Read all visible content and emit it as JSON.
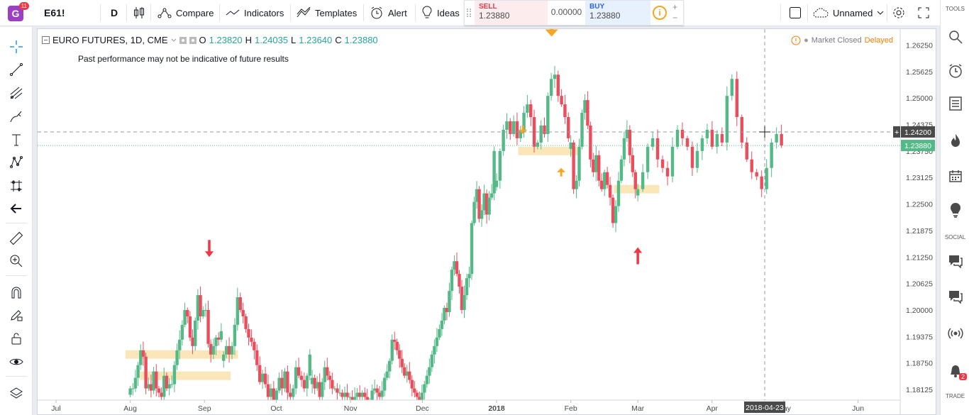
{
  "toolbar": {
    "symbol": "E61!",
    "logo_letter": "G",
    "notif_count": "11",
    "interval": "D",
    "compare": "Compare",
    "indicators": "Indicators",
    "templates": "Templates",
    "alert": "Alert",
    "ideas": "Ideas",
    "layout_name": "Unnamed"
  },
  "trade_panel": {
    "sell_label": "SELL",
    "sell_price": "1.23880",
    "spread": "0.00000",
    "buy_label": "BUY",
    "buy_price": "1.23880"
  },
  "legend": {
    "title": "EURO FUTURES, 1D, CME",
    "o_label": "O",
    "o": "1.23820",
    "h_label": "H",
    "h": "1.24035",
    "l_label": "L",
    "l": "1.23640",
    "c_label": "C",
    "c": "1.23880"
  },
  "disclaimer": "Past performance may not be indicative of future results",
  "market_status": {
    "text": "Market Closed",
    "delayed": "Delayed"
  },
  "right_panel": {
    "tools_label": "TOOLS",
    "social_label": "SOCIAL",
    "trade_label": "TRADE",
    "notif_badge": "2"
  },
  "chart_data": {
    "type": "candlestick",
    "title": "EURO FUTURES, 1D, CME",
    "ylim": [
      1.17875,
      1.26625
    ],
    "y_ticks": [
      "1.26250",
      "1.25625",
      "1.25000",
      "1.24375",
      "1.23750",
      "1.23125",
      "1.22500",
      "1.21875",
      "1.21250",
      "1.20625",
      "1.20000",
      "1.19375",
      "1.18750",
      "1.18125"
    ],
    "x_ticks": [
      "Jul",
      "Aug",
      "Sep",
      "Oct",
      "Nov",
      "Dec",
      "2018",
      "Feb",
      "Mar",
      "Apr",
      "May",
      "Jun"
    ],
    "last_price": "1.23880",
    "crosshair_price": "1.24200",
    "crosshair_date": "2018-04-23",
    "price_segments": [
      {
        "from_date": "2017-08-01",
        "to_date": "2017-09-08",
        "prices": [
          1.1815,
          1.1815,
          1.184,
          1.187,
          1.1905,
          1.189,
          1.1815,
          1.1825,
          1.181,
          1.1855,
          1.1815,
          1.1805,
          1.1795,
          1.1845,
          1.1815,
          1.1825,
          1.1825,
          1.187,
          1.1905,
          1.193,
          1.1965,
          1.2,
          1.1985,
          1.1935,
          1.1915,
          1.1975,
          1.2035,
          1.1985,
          1.2,
          1.2,
          1.192,
          1.1895,
          1.1915,
          1.1935,
          1.193,
          1.195
        ]
      },
      {
        "from_date": "2017-09-09",
        "to_date": "2017-10-15",
        "prices": [
          1.1895,
          1.1915,
          1.1895,
          1.1915,
          1.1965,
          1.203,
          1.2,
          1.1985,
          1.1955,
          1.1935,
          1.1925,
          1.1905,
          1.187,
          1.183,
          1.185,
          1.1825,
          1.1795,
          1.1815,
          1.1785,
          1.181,
          1.184,
          1.1815,
          1.1855,
          1.1805,
          1.1795,
          1.1815,
          1.1865,
          1.1845,
          1.1835,
          1.1815,
          1.1845,
          1.1895
        ]
      },
      {
        "from_date": "2017-10-16",
        "to_date": "2017-11-08",
        "prices": [
          1.184,
          1.1815,
          1.183,
          1.1795,
          1.183,
          1.1865,
          1.1845,
          1.1835,
          1.1815,
          1.1815,
          1.1805,
          1.1805,
          1.1795,
          1.1805,
          1.1795,
          1.1795,
          1.1785,
          1.1795,
          1.1805,
          1.1795,
          1.1805,
          1.1795,
          1.1785
        ]
      },
      {
        "from_date": "2017-11-09",
        "to_date": "2017-12-31",
        "prices": [
          1.1785,
          1.181,
          1.1815,
          1.1805,
          1.1795,
          1.181,
          1.184,
          1.1855,
          1.188,
          1.193,
          1.1925,
          1.1905,
          1.1885,
          1.1865,
          1.1845,
          1.1855,
          1.1835,
          1.1815,
          1.1805,
          1.1795,
          1.1785,
          1.1805,
          1.1825,
          1.1845,
          1.1865,
          1.1895,
          1.1915,
          1.1935,
          1.1955,
          1.1975,
          1.2005,
          1.1995,
          1.2045,
          1.2095,
          1.2115,
          1.2085,
          1.2055,
          1.2,
          1.2035,
          1.2075,
          1.2085,
          1.2205,
          1.2255,
          1.2285,
          1.2215,
          1.2235,
          1.2275,
          1.2225,
          1.2265,
          1.2275,
          1.2375
        ]
      },
      {
        "from_date": "2018-01-01",
        "to_date": "2018-01-31",
        "prices": [
          1.2305,
          1.2375,
          1.2425,
          1.2445,
          1.2415,
          1.2445,
          1.2405,
          1.2425,
          1.2465,
          1.2485,
          1.2455,
          1.2385,
          1.2395,
          1.2435,
          1.2415,
          1.2505,
          1.2545,
          1.2555,
          1.2505,
          1.2485,
          1.2455,
          1.2405
        ]
      },
      {
        "from_date": "2018-02-01",
        "to_date": "2018-02-28",
        "prices": [
          1.2395,
          1.2285,
          1.2305,
          1.2385,
          1.2465,
          1.2495,
          1.2435,
          1.2355,
          1.2325,
          1.2365,
          1.2305,
          1.2285,
          1.2325,
          1.2295,
          1.2265,
          1.2205,
          1.2245,
          1.2305,
          1.2355,
          1.2405,
          1.2425,
          1.2365,
          1.2325,
          1.2285
        ]
      },
      {
        "from_date": "2018-03-01",
        "to_date": "2018-04-30",
        "prices": [
          1.2285,
          1.2325,
          1.2385,
          1.2405,
          1.2355,
          1.2335,
          1.2315,
          1.2385,
          1.2425,
          1.2405,
          1.2385,
          1.2335,
          1.2375,
          1.2405,
          1.2425,
          1.2385,
          1.2415,
          1.2395,
          1.2505,
          1.2545,
          1.2455,
          1.2395,
          1.2355,
          1.2325,
          1.2315,
          1.2285,
          1.2335,
          1.2395,
          1.2415,
          1.2388
        ]
      }
    ],
    "annotations": [
      {
        "kind": "arrow-down",
        "color": "#f23645",
        "date": "2017-09-03",
        "price": 1.2125
      },
      {
        "kind": "arrow-down",
        "color": "#f5a623",
        "date": "2018-01-24",
        "price": 1.2645
      },
      {
        "kind": "arrow-down-small",
        "color": "#f5a623",
        "date": "2018-01-12",
        "price": 1.2415
      },
      {
        "kind": "arrow-up-small",
        "color": "#f5a623",
        "date": "2018-01-28",
        "price": 1.2335
      },
      {
        "kind": "arrow-up",
        "color": "#f23645",
        "date": "2018-03-01",
        "price": 1.2148
      },
      {
        "kind": "zone",
        "color": "#f5d37f",
        "from_date": "2017-07-30",
        "to_date": "2017-09-15",
        "price_from": 1.1905,
        "price_to": 1.1885
      },
      {
        "kind": "zone",
        "color": "#f5d37f",
        "from_date": "2017-08-05",
        "to_date": "2017-09-12",
        "price_from": 1.1855,
        "price_to": 1.1835
      },
      {
        "kind": "zone",
        "color": "#f5d37f",
        "from_date": "2018-01-10",
        "to_date": "2018-02-05",
        "price_from": 1.2385,
        "price_to": 1.2365
      },
      {
        "kind": "zone",
        "color": "#f5d37f",
        "from_date": "2018-02-19",
        "to_date": "2018-03-10",
        "price_from": 1.2295,
        "price_to": 1.2275
      }
    ]
  }
}
